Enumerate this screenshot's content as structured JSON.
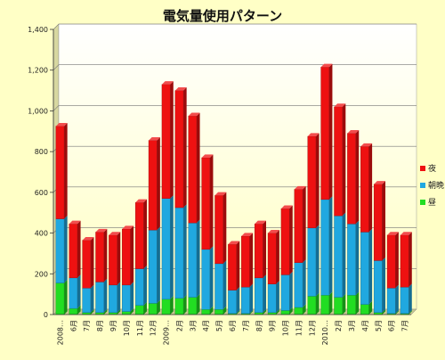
{
  "chart_data": {
    "type": "bar",
    "stacked": true,
    "title": "電気量使用パターン",
    "ylim": [
      0,
      1400
    ],
    "yticks": [
      "0",
      "200",
      "400",
      "600",
      "800",
      "1,000",
      "1,200",
      "1,400"
    ],
    "grid": true,
    "legend_position": "right",
    "categories": [
      "2008…",
      "6月",
      "7月",
      "8月",
      "9月",
      "10月",
      "11月",
      "12月",
      "2009…",
      "2月",
      "3月",
      "4月",
      "5月",
      "6月",
      "7月",
      "8月",
      "9月",
      "10月",
      "11月",
      "12月",
      "2010…",
      "2月",
      "3月",
      "4月",
      "5月",
      "6月",
      "7月"
    ],
    "series": [
      {
        "name": "昼",
        "color": "#22dd22",
        "values": [
          155,
          30,
          10,
          10,
          10,
          15,
          45,
          55,
          75,
          80,
          85,
          25,
          25,
          5,
          5,
          10,
          10,
          20,
          35,
          90,
          95,
          85,
          95,
          50,
          10,
          5,
          5
        ]
      },
      {
        "name": "朝晩",
        "color": "#20a8e0",
        "values": [
          315,
          150,
          120,
          150,
          135,
          130,
          180,
          360,
          495,
          445,
          365,
          295,
          225,
          115,
          130,
          170,
          140,
          175,
          220,
          335,
          470,
          400,
          350,
          355,
          255,
          125,
          130
        ]
      },
      {
        "name": "夜",
        "color": "#ee1111",
        "values": [
          455,
          265,
          235,
          245,
          245,
          275,
          325,
          440,
          560,
          575,
          525,
          450,
          335,
          225,
          250,
          265,
          250,
          325,
          360,
          450,
          650,
          535,
          445,
          420,
          375,
          260,
          255
        ]
      }
    ]
  }
}
